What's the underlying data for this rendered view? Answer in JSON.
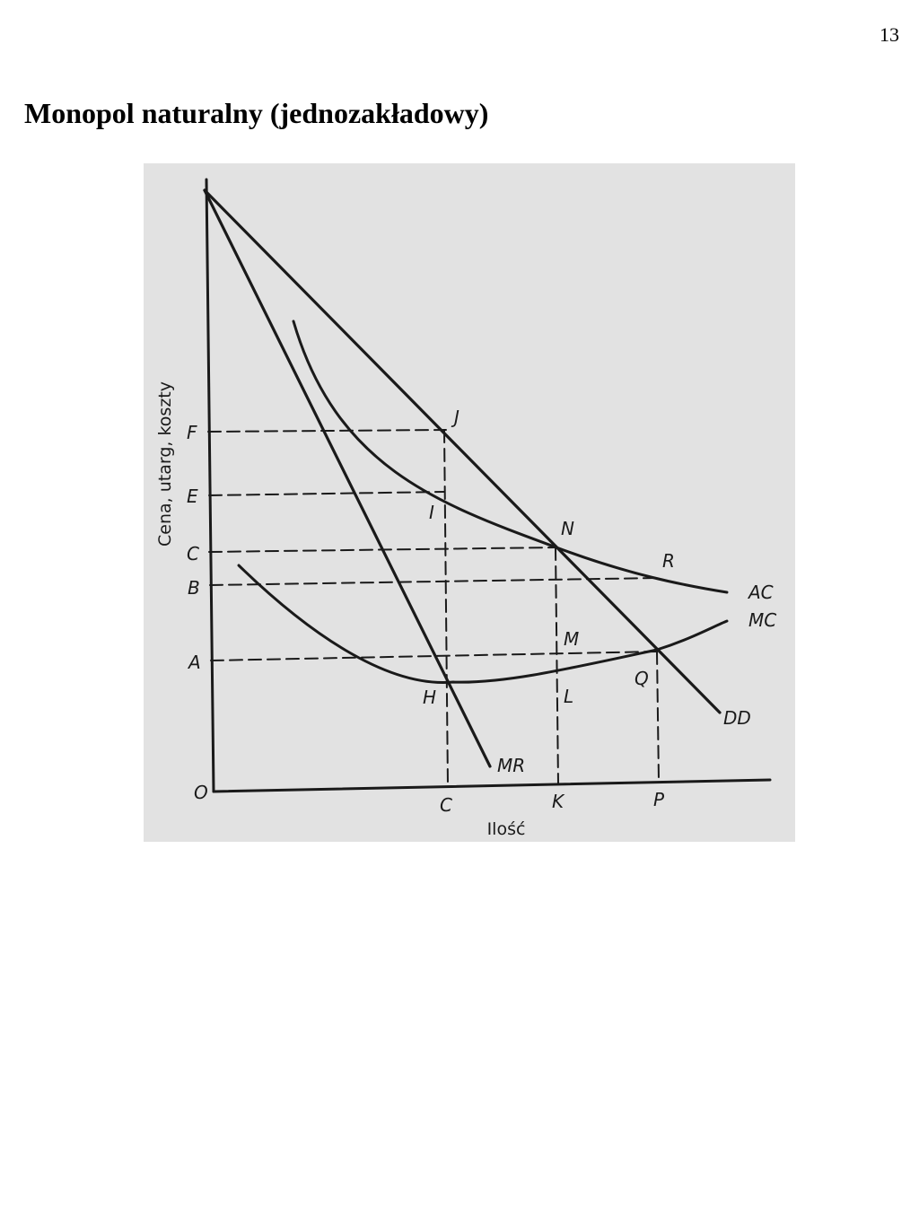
{
  "page": {
    "number": "13",
    "title": "Monopol naturalny (jednozakładowy)"
  },
  "figure": {
    "background_color": "#e2e2e2",
    "ink_color": "#1a1a1a",
    "y_axis_title": "Cena, utarg, koszty",
    "x_axis_title": "Ilość",
    "origin_label": "O",
    "price_labels": {
      "F": "F",
      "E": "E",
      "C": "C",
      "B": "B",
      "A": "A"
    },
    "quantity_labels": {
      "C": "C",
      "K": "K",
      "P": "P"
    },
    "point_labels": {
      "J": "J",
      "I": "I",
      "N": "N",
      "R": "R",
      "M": "M",
      "Q": "Q",
      "H": "H",
      "L": "L"
    },
    "curve_labels": {
      "AC": "AC",
      "MC": "MC",
      "DD": "DD",
      "MR": "MR"
    }
  }
}
